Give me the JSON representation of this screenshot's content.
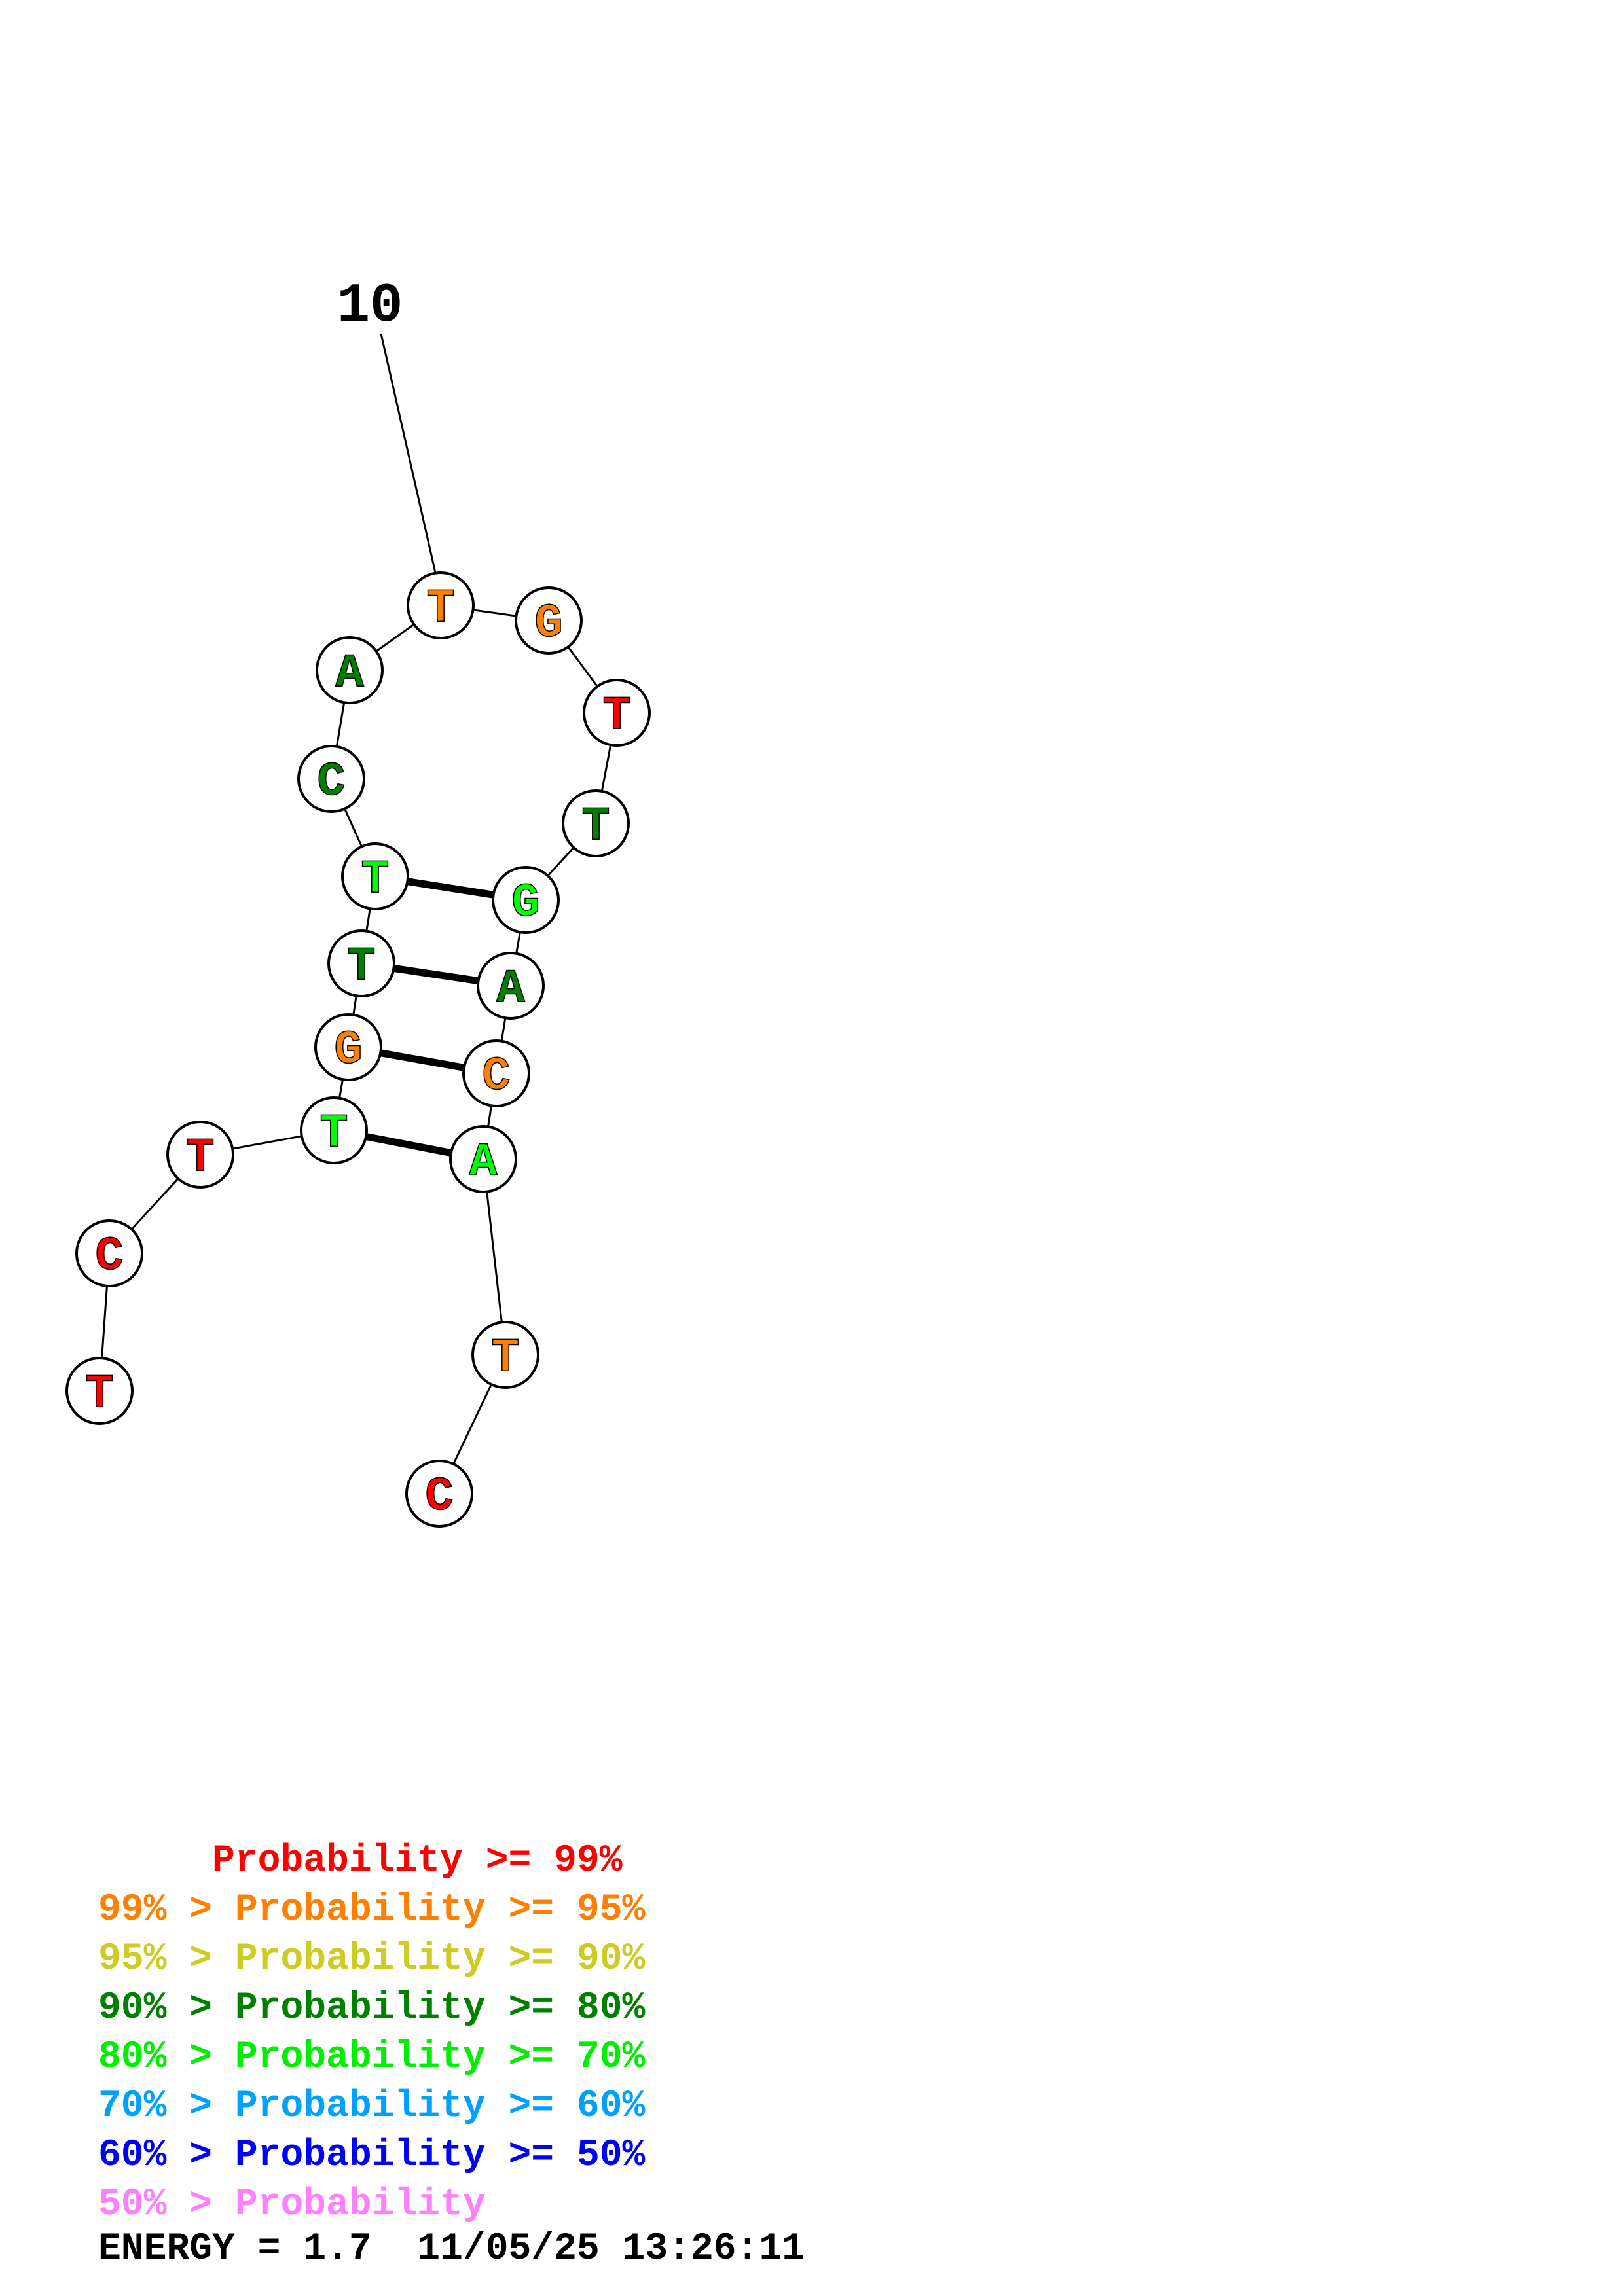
{
  "diagram": {
    "position_label": "10",
    "nucleotides": [
      {
        "base": "T",
        "color": "#ff0000"
      },
      {
        "base": "C",
        "color": "#ff0000"
      },
      {
        "base": "T",
        "color": "#ff0000"
      },
      {
        "base": "T",
        "color": "#00ff00"
      },
      {
        "base": "G",
        "color": "#ff8000"
      },
      {
        "base": "T",
        "color": "#008000"
      },
      {
        "base": "T",
        "color": "#00ff00"
      },
      {
        "base": "C",
        "color": "#008000"
      },
      {
        "base": "A",
        "color": "#008000"
      },
      {
        "base": "T",
        "color": "#ff8000"
      },
      {
        "base": "G",
        "color": "#ff8000"
      },
      {
        "base": "T",
        "color": "#ff0000"
      },
      {
        "base": "T",
        "color": "#008000"
      },
      {
        "base": "G",
        "color": "#00ff00"
      },
      {
        "base": "A",
        "color": "#008000"
      },
      {
        "base": "C",
        "color": "#ff8000"
      },
      {
        "base": "A",
        "color": "#00ff00"
      },
      {
        "base": "T",
        "color": "#ff8000"
      },
      {
        "base": "C",
        "color": "#ff0000"
      }
    ],
    "pairs": [
      [
        4,
        17
      ],
      [
        5,
        16
      ],
      [
        6,
        15
      ],
      [
        7,
        14
      ]
    ]
  },
  "legend": [
    {
      "text": "     Probability >= 99%",
      "color": "#ff0000"
    },
    {
      "text": "99% > Probability >= 95%",
      "color": "#ff8000"
    },
    {
      "text": "95% > Probability >= 90%",
      "color": "#cccc22"
    },
    {
      "text": "90% > Probability >= 80%",
      "color": "#008000"
    },
    {
      "text": "80% > Probability >= 70%",
      "color": "#00ee00"
    },
    {
      "text": "70% > Probability >= 60%",
      "color": "#00a0ff"
    },
    {
      "text": "60% > Probability >= 50%",
      "color": "#0000ff"
    },
    {
      "text": "50% > Probability",
      "color": "#ff80ff"
    }
  ],
  "energy_line": "ENERGY = 1.7  11/05/25 13:26:11"
}
